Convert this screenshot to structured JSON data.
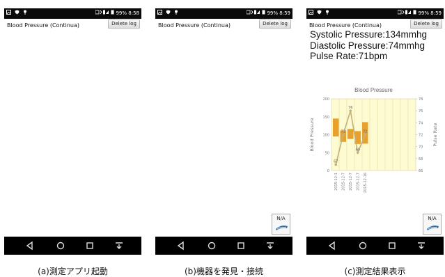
{
  "status_bar": {
    "left_icons": [
      "image-icon",
      "shield-icon",
      "pin-icon"
    ],
    "battery": "99%",
    "time_a": "8:58",
    "time_b": "8:59",
    "time_c": "8:59"
  },
  "app": {
    "title": "Blood Pressure (Continua)",
    "delete_label": "Delete log"
  },
  "readings": {
    "systolic": "Systolic Pressure:134mmhg",
    "diastolic": "Diastolic Pressure:74mmhg",
    "pulse": "Pulse Rate:71bpm"
  },
  "device_button": {
    "label": "N/A",
    "icon": "blood-pressure-cuff-icon"
  },
  "nav": [
    "back-icon",
    "home-icon",
    "recents-icon",
    "menu-icon"
  ],
  "captions": {
    "a": "(a)測定アプリ起動",
    "b": "(b)機器を発見・接続",
    "c": "(c)測定結果表示"
  },
  "chart_data": {
    "type": "bar",
    "title": "Blood Pressure",
    "ylabel": "Blood Pressure",
    "y2label": "Pulse Rate",
    "ylim": [
      0,
      200
    ],
    "y2lim": [
      66,
      78
    ],
    "yticks": [
      "0",
      "50",
      "100",
      "150",
      "200"
    ],
    "y2ticks": [
      "66",
      "68",
      "70",
      "72",
      "74",
      "76",
      "78"
    ],
    "categories": [
      "2015-12-1",
      "2015-12-7",
      "2015-12-7",
      "2015-12-7",
      "2015-12-16"
    ],
    "bp_ranges": [
      [
        95,
        145
      ],
      [
        80,
        112
      ],
      [
        88,
        116
      ],
      [
        74,
        110
      ],
      [
        75,
        135
      ]
    ],
    "pulse": [
      67,
      72,
      76,
      69,
      72
    ],
    "pulse_labels": [
      "67",
      "72",
      "76",
      "69",
      "72"
    ],
    "colors": {
      "bar": "#e8a12c",
      "pulse_line": "#c2b27a",
      "plot_bg": "#fdfbd2",
      "grid": "#e6dc9a"
    }
  }
}
